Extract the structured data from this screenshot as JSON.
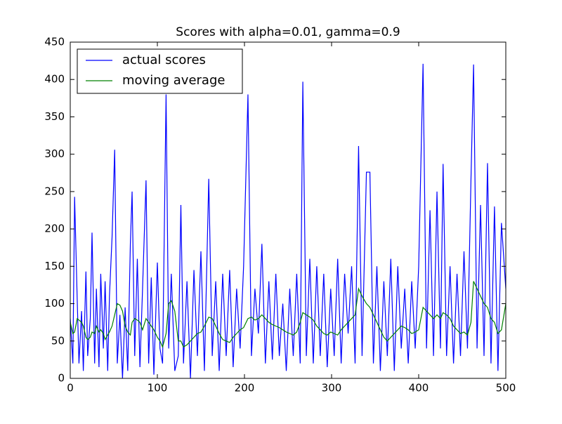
{
  "chart_data": {
    "type": "line",
    "title": "Scores with alpha=0.01, gamma=0.9",
    "x": [
      0,
      3,
      5,
      8,
      10,
      13,
      15,
      18,
      20,
      23,
      25,
      28,
      30,
      33,
      35,
      38,
      40,
      43,
      45,
      48,
      51,
      54,
      57,
      60,
      63,
      66,
      69,
      71,
      74,
      77,
      80,
      83,
      87,
      90,
      93,
      96,
      100,
      103,
      106,
      110,
      113,
      116,
      120,
      124,
      127,
      130,
      134,
      138,
      142,
      146,
      150,
      154,
      159,
      163,
      167,
      171,
      175,
      179,
      183,
      187,
      191,
      195,
      199,
      204,
      208,
      212,
      216,
      220,
      224,
      228,
      232,
      236,
      240,
      244,
      248,
      252,
      256,
      260,
      264,
      267,
      271,
      275,
      279,
      283,
      287,
      291,
      295,
      299,
      303,
      307,
      311,
      315,
      319,
      323,
      327,
      331,
      335,
      340,
      344,
      348,
      352,
      356,
      360,
      364,
      368,
      372,
      376,
      380,
      384,
      388,
      392,
      396,
      400,
      405,
      409,
      413,
      417,
      421,
      425,
      428,
      432,
      436,
      440,
      444,
      448,
      452,
      456,
      460,
      463,
      467,
      471,
      475,
      479,
      483,
      487,
      491,
      495,
      500
    ],
    "series": [
      {
        "name": "actual scores",
        "color": "#0000ff",
        "values": [
          80,
          20,
          243,
          105,
          20,
          90,
          10,
          143,
          30,
          80,
          195,
          20,
          120,
          15,
          140,
          40,
          130,
          10,
          110,
          189,
          306,
          20,
          85,
          0,
          95,
          10,
          180,
          250,
          30,
          160,
          15,
          120,
          265,
          20,
          135,
          5,
          155,
          40,
          20,
          380,
          40,
          140,
          10,
          30,
          232,
          20,
          130,
          0,
          145,
          30,
          170,
          10,
          267,
          30,
          130,
          10,
          140,
          30,
          145,
          15,
          120,
          40,
          150,
          380,
          30,
          120,
          60,
          180,
          20,
          130,
          25,
          140,
          30,
          100,
          10,
          120,
          30,
          140,
          20,
          397,
          30,
          160,
          20,
          150,
          30,
          140,
          15,
          120,
          30,
          160,
          20,
          140,
          60,
          150,
          20,
          311,
          30,
          276,
          276,
          20,
          150,
          10,
          130,
          30,
          160,
          10,
          150,
          40,
          120,
          20,
          130,
          40,
          150,
          421,
          40,
          225,
          30,
          250,
          40,
          287,
          30,
          150,
          20,
          140,
          30,
          170,
          40,
          265,
          420,
          40,
          232,
          30,
          288,
          20,
          230,
          10,
          208,
          120
        ]
      },
      {
        "name": "moving average",
        "color": "#008000",
        "values": [
          75,
          60,
          62,
          80,
          78,
          75,
          70,
          55,
          52,
          55,
          62,
          60,
          70,
          62,
          65,
          60,
          52,
          58,
          62,
          70,
          85,
          100,
          98,
          90,
          70,
          62,
          58,
          75,
          80,
          78,
          75,
          65,
          80,
          75,
          70,
          65,
          55,
          50,
          42,
          60,
          100,
          104,
          90,
          50,
          50,
          42,
          45,
          50,
          55,
          60,
          62,
          70,
          82,
          80,
          70,
          60,
          52,
          50,
          48,
          55,
          60,
          65,
          68,
          80,
          82,
          78,
          80,
          85,
          80,
          75,
          72,
          70,
          68,
          65,
          62,
          60,
          58,
          62,
          75,
          88,
          85,
          82,
          78,
          70,
          65,
          60,
          58,
          62,
          60,
          58,
          65,
          70,
          75,
          80,
          85,
          120,
          110,
          100,
          95,
          85,
          75,
          65,
          55,
          50,
          55,
          60,
          65,
          70,
          68,
          65,
          60,
          62,
          65,
          95,
          90,
          85,
          80,
          85,
          80,
          88,
          85,
          80,
          70,
          65,
          60,
          62,
          58,
          75,
          130,
          120,
          110,
          100,
          95,
          80,
          75,
          60,
          65,
          100
        ]
      }
    ],
    "xlim": [
      0,
      500
    ],
    "xticks": [
      0,
      100,
      200,
      300,
      400,
      500
    ],
    "ylim": [
      0,
      450
    ],
    "yticks": [
      0,
      50,
      100,
      150,
      200,
      250,
      300,
      350,
      400,
      450
    ],
    "grid": false,
    "legend": "upper left"
  }
}
